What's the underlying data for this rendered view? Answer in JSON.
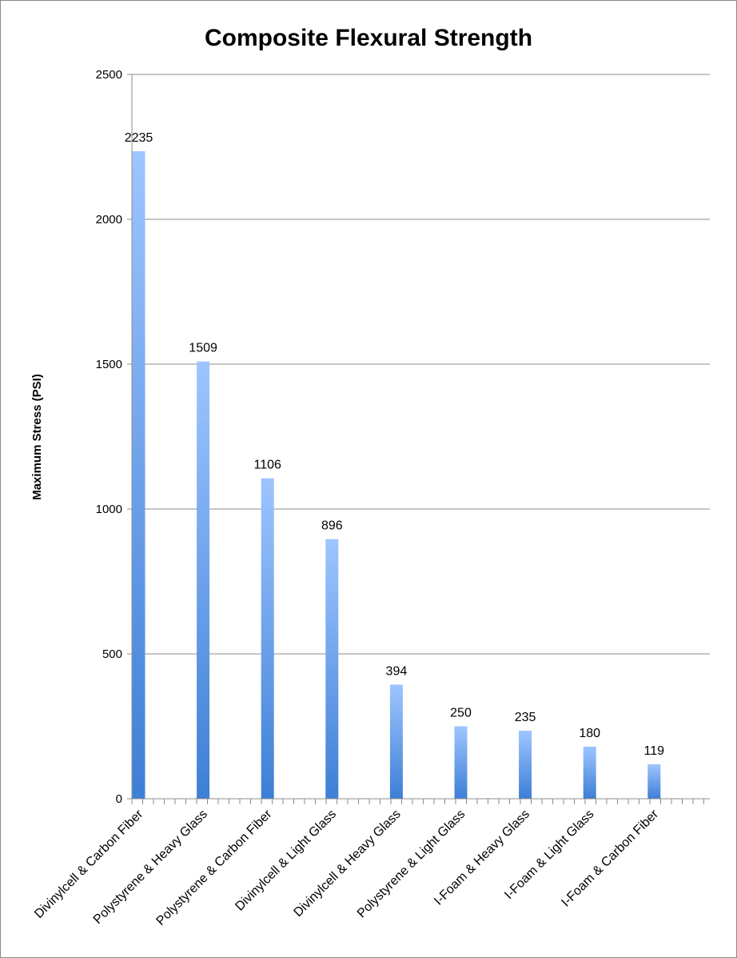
{
  "chart_data": {
    "type": "bar",
    "title": "Composite Flexural Strength",
    "xlabel": "",
    "ylabel": "Maximum Stress (PSI)",
    "ylim": [
      0,
      2500
    ],
    "yticks": [
      0,
      500,
      1000,
      1500,
      2000,
      2500
    ],
    "grid": true,
    "legend": "none",
    "bar_color_top": "#9ec5ff",
    "bar_color_bottom": "#3d7fd6",
    "categories": [
      "Divinylcell & Carbon Fiber",
      "Polystyrene & Heavy Glass",
      "Polystyrene & Carbon Fiber",
      "Divinylcell & Light Glass",
      "Divinylcell & Heavy Glass",
      "Polystyrene & Light Glass",
      "I-Foam & Heavy Glass",
      "I-Foam & Light Glass",
      "I-Foam & Carbon Fiber"
    ],
    "values": [
      2235,
      1509,
      1106,
      896,
      394,
      250,
      235,
      180,
      119
    ]
  }
}
